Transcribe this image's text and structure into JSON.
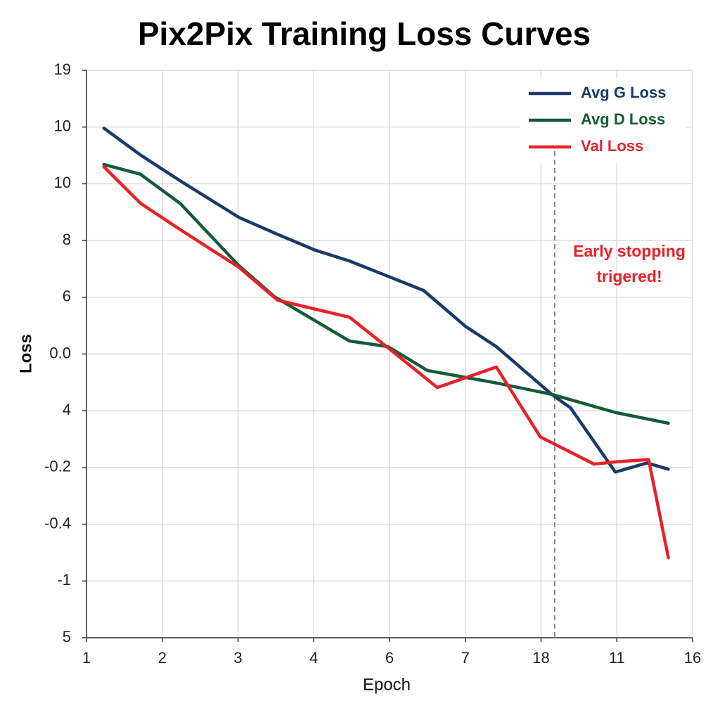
{
  "chart_data": {
    "type": "line",
    "title": "Pix2Pix Training Loss Curves",
    "x_label": "Epoch",
    "y_label": "Loss",
    "xlim": [
      1,
      9
    ],
    "ylim": [
      0,
      10
    ],
    "xticks": [
      1,
      2,
      3,
      4,
      {
        "value": 5,
        "label": "6"
      },
      {
        "value": 6,
        "label": "7"
      },
      {
        "value": 7,
        "label": "18"
      },
      {
        "value": 8,
        "label": "11"
      },
      {
        "value": 9,
        "label": "16"
      }
    ],
    "yticks": [
      {
        "value": 0,
        "label": "5"
      },
      {
        "value": 1,
        "label": "-1"
      },
      {
        "value": 2,
        "label": "-0.4"
      },
      {
        "value": 3,
        "label": "-0.2"
      },
      4,
      {
        "value": 5,
        "label": "0.0"
      },
      6,
      {
        "value": 7,
        "label": "8"
      },
      {
        "value": 8,
        "label": "10"
      },
      {
        "value": 9,
        "label": "10"
      },
      {
        "value": 10,
        "label": "19"
      }
    ],
    "grid": true,
    "legend": "top-right",
    "series": [
      {
        "name": "Avg G Loss",
        "color": "#1a3a6b",
        "x": [
          1.23,
          1.71,
          2.24,
          3.01,
          3.52,
          4.02,
          4.47,
          4.98,
          5.45,
          6.0,
          6.41,
          7.14,
          7.39,
          7.98,
          8.4,
          8.68
        ],
        "values": [
          8.98,
          8.51,
          8.05,
          7.41,
          7.11,
          6.83,
          6.64,
          6.37,
          6.12,
          5.49,
          5.13,
          4.29,
          4.05,
          2.92,
          3.08,
          2.97
        ]
      },
      {
        "name": "Avg D Loss",
        "color": "#155a3a",
        "x": [
          1.23,
          1.71,
          2.24,
          3.01,
          3.48,
          4.47,
          4.98,
          5.5,
          6.41,
          7.14,
          7.98,
          8.68
        ],
        "values": [
          8.34,
          8.17,
          7.65,
          6.56,
          6.01,
          5.23,
          5.13,
          4.71,
          4.49,
          4.29,
          3.97,
          3.78
        ]
      },
      {
        "name": "Val Loss",
        "color": "#e62228",
        "x": [
          1.23,
          1.71,
          2.24,
          3.01,
          3.52,
          4.02,
          4.47,
          4.98,
          5.63,
          6.0,
          6.41,
          6.99,
          7.7,
          7.98,
          8.42,
          8.68
        ],
        "values": [
          8.3,
          7.66,
          7.19,
          6.53,
          5.95,
          5.79,
          5.65,
          5.11,
          4.41,
          4.58,
          4.77,
          3.54,
          3.06,
          3.1,
          3.14,
          1.41
        ]
      }
    ],
    "annotation": {
      "text": [
        "Early stopping",
        "trigered!"
      ],
      "x": 7.18,
      "color": "#e62228"
    }
  }
}
